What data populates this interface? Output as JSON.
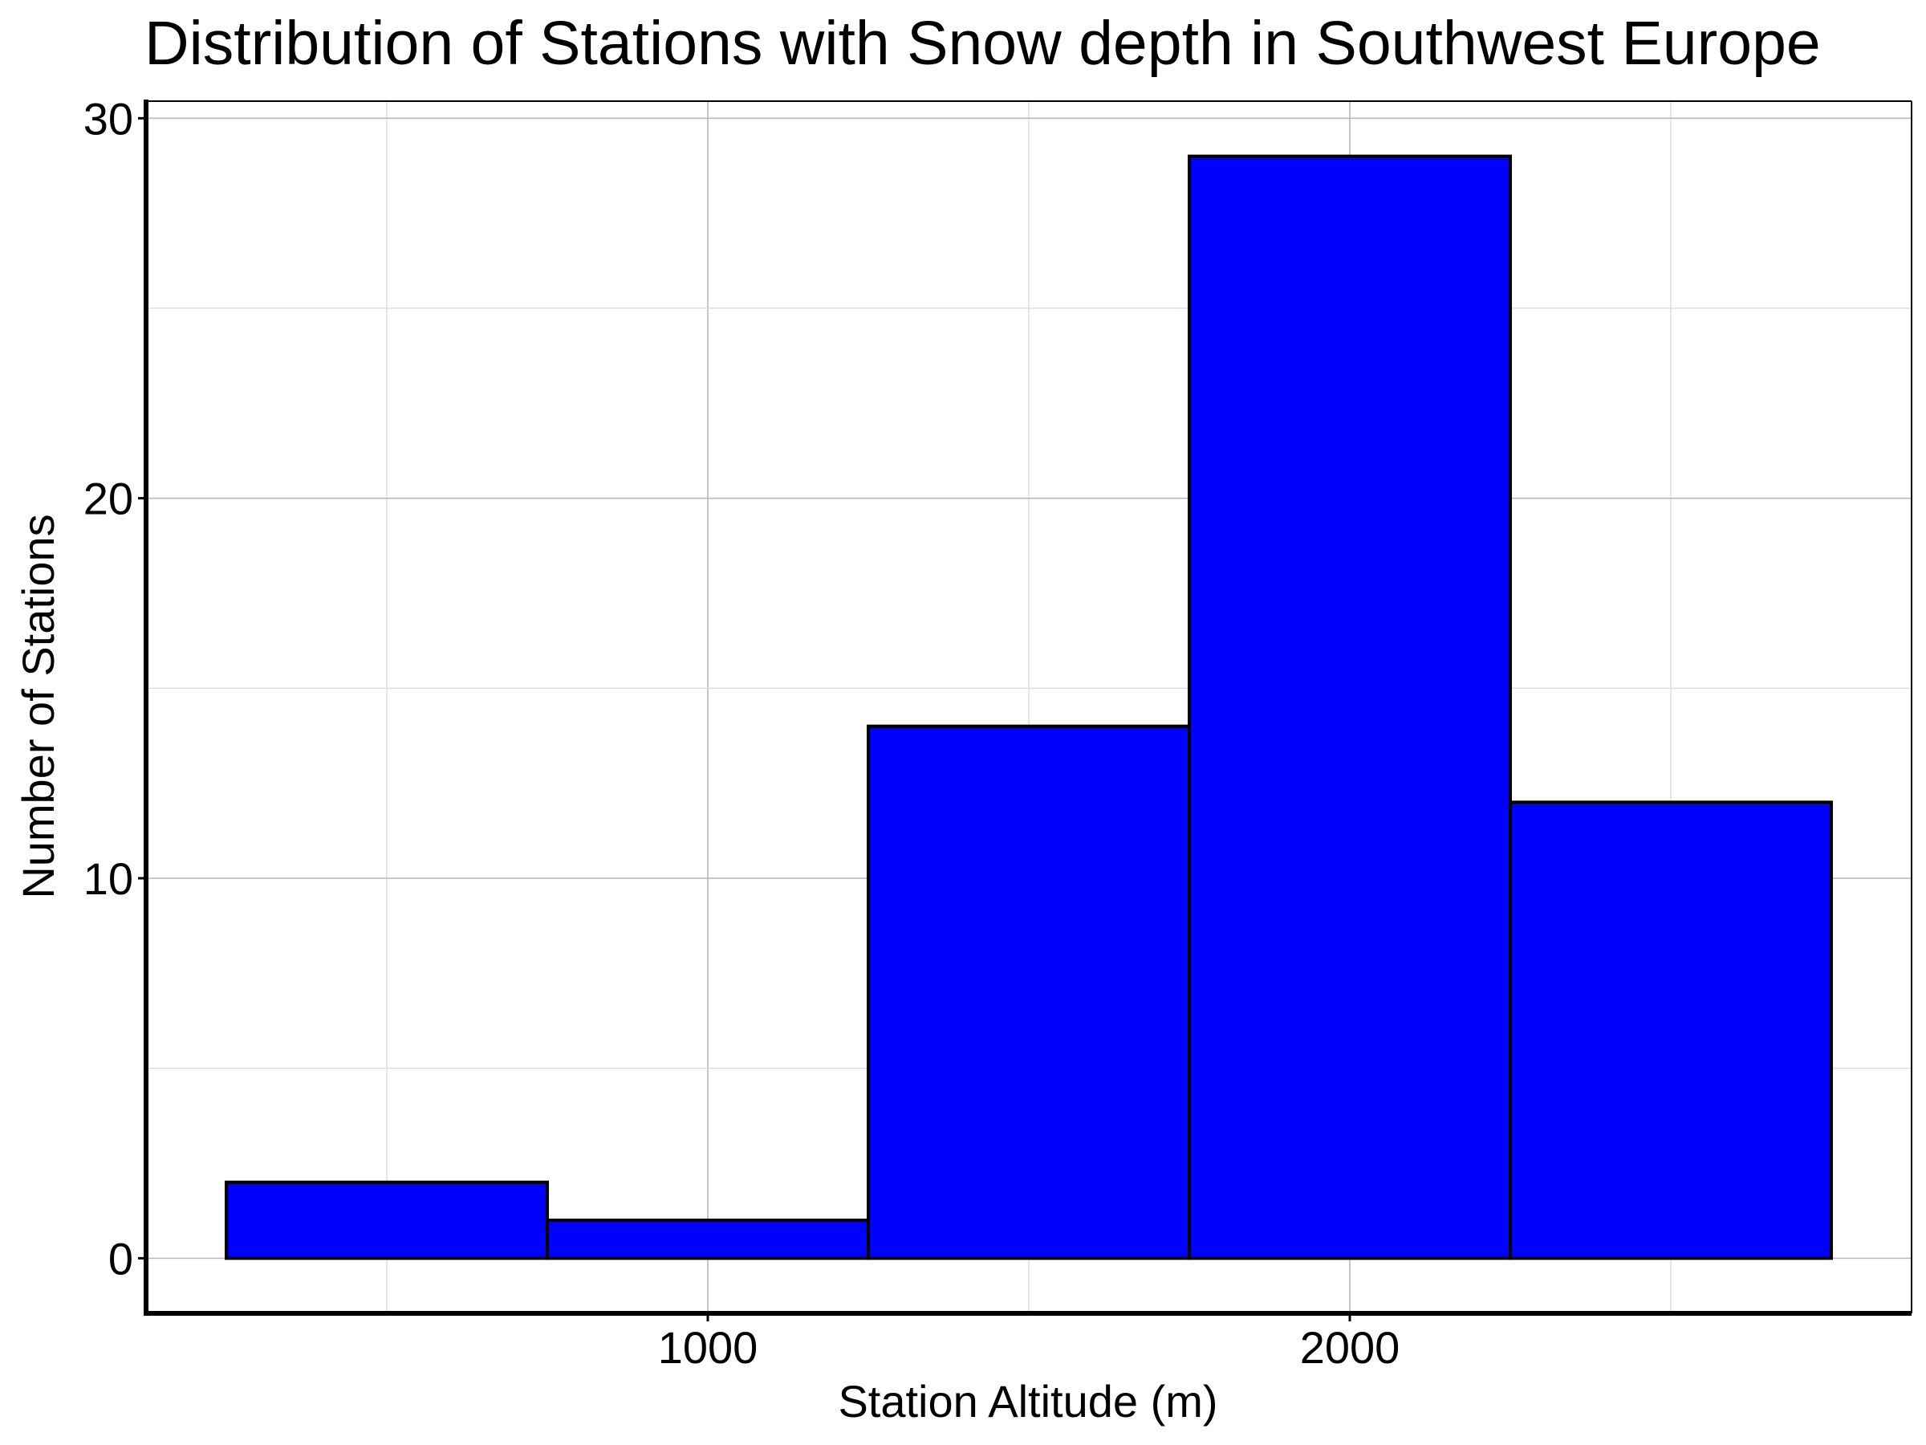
{
  "chart_data": {
    "type": "bar",
    "title": "Distribution of Stations with Snow depth in Southwest Europe",
    "xlabel": "Station Altitude (m)",
    "ylabel": "Number of Stations",
    "bins": [
      {
        "start": 250,
        "end": 750,
        "count": 2
      },
      {
        "start": 750,
        "end": 1250,
        "count": 1
      },
      {
        "start": 1250,
        "end": 1750,
        "count": 14
      },
      {
        "start": 1750,
        "end": 2250,
        "count": 29
      },
      {
        "start": 2250,
        "end": 2750,
        "count": 12
      }
    ],
    "xlim": [
      125,
      2875
    ],
    "ylim": [
      -1.45,
      30.45
    ],
    "xticks": [
      1000,
      2000
    ],
    "xtick_labels": [
      "1000",
      "2000"
    ],
    "yticks": [
      0,
      10,
      20,
      30
    ],
    "ytick_labels": [
      "0",
      "10",
      "20",
      "30"
    ],
    "bar_color": "#0000ff",
    "edge_color": "#000000",
    "grid": true
  }
}
